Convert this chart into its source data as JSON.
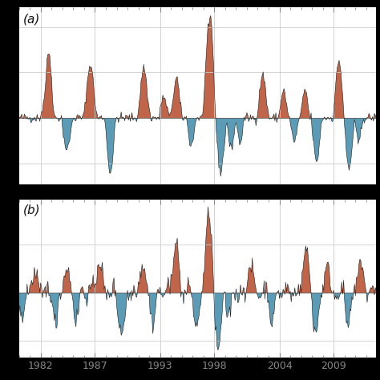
{
  "title_a": "(a)",
  "title_b": "(b)",
  "positive_color": "#C1654A",
  "negative_color": "#5B9BB5",
  "line_color": "#1a1a1a",
  "x_tick_labels": [
    "1982",
    "1987",
    "1993",
    "1998",
    "2004",
    "2009"
  ],
  "x_tick_years": [
    1982,
    1987,
    1993,
    1998,
    2004,
    2009
  ]
}
